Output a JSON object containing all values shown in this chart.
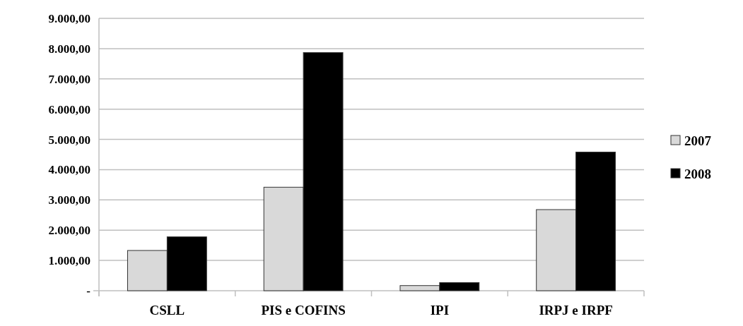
{
  "chart_data": {
    "type": "bar",
    "categories": [
      "CSLL",
      "PIS e COFINS",
      "IPI",
      "IRPJ e IRPF"
    ],
    "series": [
      {
        "name": "2007",
        "color": "#d9d9d9",
        "values": [
          1330,
          3420,
          170,
          2680
        ]
      },
      {
        "name": "2008",
        "color": "#000000",
        "values": [
          1780,
          7870,
          270,
          4580
        ]
      }
    ],
    "ylim": [
      0,
      9000
    ],
    "yticks": [
      {
        "value": 0,
        "label": "-"
      },
      {
        "value": 1000,
        "label": "1.000,00"
      },
      {
        "value": 2000,
        "label": "2.000,00"
      },
      {
        "value": 3000,
        "label": "3.000,00"
      },
      {
        "value": 4000,
        "label": "4.000,00"
      },
      {
        "value": 5000,
        "label": "5.000,00"
      },
      {
        "value": 6000,
        "label": "6.000,00"
      },
      {
        "value": 7000,
        "label": "7.000,00"
      },
      {
        "value": 8000,
        "label": "8.000,00"
      },
      {
        "value": 9000,
        "label": "9.000,00"
      }
    ],
    "grid": "y",
    "legend": "right"
  }
}
